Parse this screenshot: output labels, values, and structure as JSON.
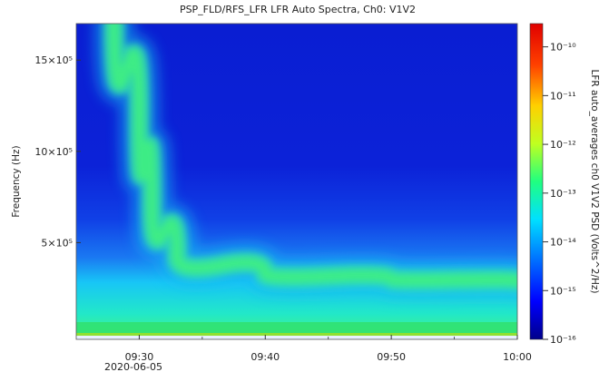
{
  "chart_data": {
    "type": "heatmap",
    "title": "PSP_FLD/RFS_LFR  LFR Auto Spectra, Ch0: V1V2",
    "ylabel": "Frequency (Hz)",
    "colorbar_label": "LFR auto_averages ch0 V1V2 PSD (Volts^2/Hz)",
    "x_ticks": [
      "09:30",
      "09:40",
      "09:50",
      "10:00"
    ],
    "x_date_label": "2020-06-05",
    "x_range": [
      "09:25",
      "10:00"
    ],
    "y_ticks": [
      {
        "value": 500000,
        "label": "5×10⁵"
      },
      {
        "value": 1000000,
        "label": "10×10⁵"
      },
      {
        "value": 1500000,
        "label": "15×10⁵"
      }
    ],
    "ylim": [
      0,
      1700000
    ],
    "colorbar": {
      "scale": "log",
      "range": [
        1e-16,
        3e-10
      ],
      "ticks": [
        {
          "value": 1e-10,
          "label": "10⁻¹⁰"
        },
        {
          "value": 1e-11,
          "label": "10⁻¹¹"
        },
        {
          "value": 1e-12,
          "label": "10⁻¹²"
        },
        {
          "value": 1e-13,
          "label": "10⁻¹³"
        },
        {
          "value": 1e-14,
          "label": "10⁻¹⁴"
        },
        {
          "value": 1e-15,
          "label": "10⁻¹⁵"
        },
        {
          "value": 1e-16,
          "label": "10⁻¹⁶"
        }
      ],
      "colors": [
        "#00008a",
        "#0000ff",
        "#0080ff",
        "#00e0ff",
        "#20ff80",
        "#c0ff20",
        "#ffd000",
        "#ff4000",
        "#e00000"
      ]
    },
    "features": {
      "emission_band": {
        "description": "plasma line drifting from high to low frequency",
        "points": [
          {
            "t": "09:28",
            "f": 1700000
          },
          {
            "t": "09:30",
            "f": 1200000
          },
          {
            "t": "09:31",
            "f": 700000
          },
          {
            "t": "09:33",
            "f": 420000
          },
          {
            "t": "09:40",
            "f": 330000
          },
          {
            "t": "09:50",
            "f": 300000
          },
          {
            "t": "10:00",
            "f": 290000
          }
        ]
      },
      "background_band_upper_f": 300000,
      "strong_band_upper_f": 60000
    }
  }
}
